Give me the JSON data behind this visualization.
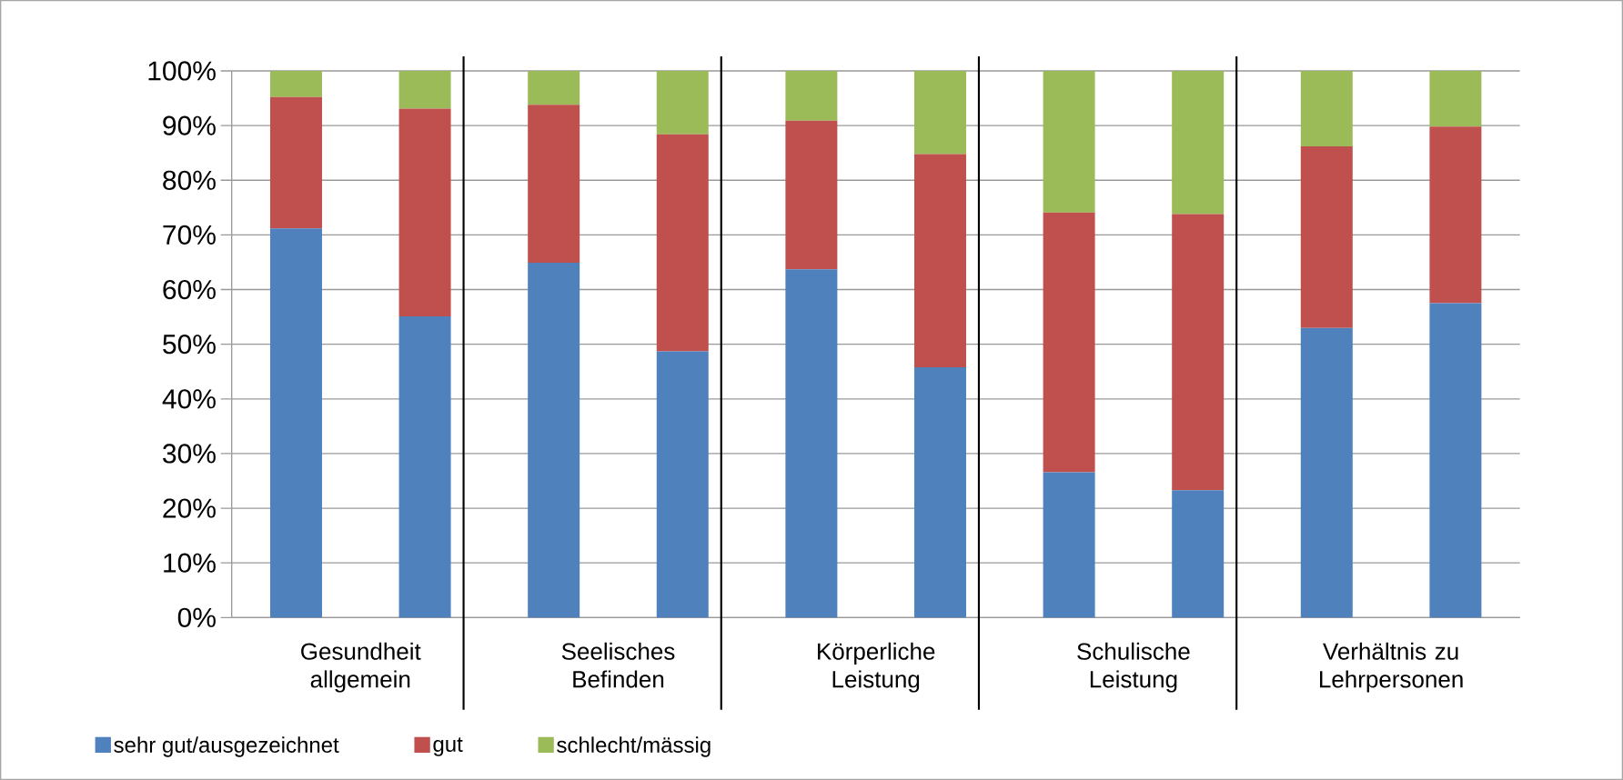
{
  "chart_data": {
    "type": "bar",
    "stacked": true,
    "categories": [
      "Gesundheit allgemein",
      null,
      "Seelisches Befinden",
      null,
      "Körperliche Leistung",
      null,
      "Schulische Leistung",
      null,
      "Verhältnis zu Lehrpersonen",
      null
    ],
    "series": [
      {
        "name": "sehr gut/ausgezeichnet",
        "color": "#4f81bd",
        "values": [
          71.2,
          55.1,
          64.9,
          48.7,
          63.7,
          45.8,
          26.6,
          23.3,
          53.0,
          57.5
        ]
      },
      {
        "name": "gut",
        "color": "#c0504d",
        "values": [
          24.0,
          38.0,
          28.9,
          39.7,
          27.2,
          39.0,
          47.5,
          50.5,
          33.2,
          32.3
        ]
      },
      {
        "name": "schlecht/mässig",
        "color": "#9bbb59",
        "values": [
          4.8,
          6.9,
          6.2,
          11.6,
          9.1,
          15.2,
          25.9,
          26.2,
          13.8,
          10.2
        ]
      }
    ],
    "ylim": [
      0,
      100
    ],
    "yticks": [
      {
        "value": 0,
        "label": "0%"
      },
      {
        "value": 10,
        "label": "10%"
      },
      {
        "value": 20,
        "label": "20%"
      },
      {
        "value": 30,
        "label": "30%"
      },
      {
        "value": 40,
        "label": "40%"
      },
      {
        "value": 50,
        "label": "50%"
      },
      {
        "value": 60,
        "label": "60%"
      },
      {
        "value": 70,
        "label": "70%"
      },
      {
        "value": 80,
        "label": "80%"
      },
      {
        "value": 90,
        "label": "90%"
      },
      {
        "value": 100,
        "label": "100%"
      }
    ],
    "grid": "y",
    "legend": "bottom left"
  }
}
